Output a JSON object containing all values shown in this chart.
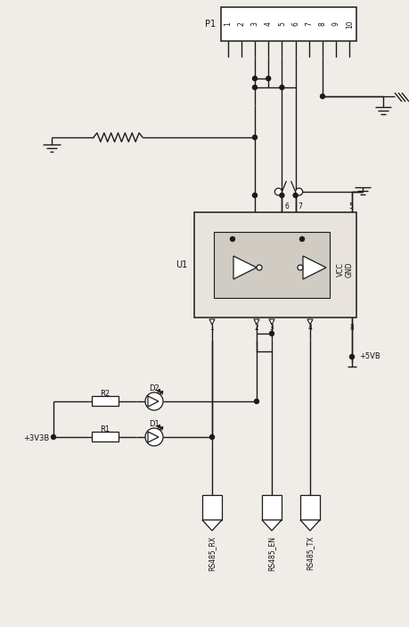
{
  "bg_color": "#f0ede8",
  "line_color": "#1a1a1a",
  "figsize": [
    4.59,
    7.03
  ],
  "dpi": 100,
  "p1_pins": [
    "1",
    "2",
    "3",
    "4",
    "5",
    "6",
    "7",
    "8",
    "9",
    "10"
  ],
  "labels": {
    "p1": "P1",
    "u1": "U1",
    "vcc": "VCC",
    "gnd": "GND",
    "r1": "R1",
    "r2": "R2",
    "d1": "D1",
    "d2": "D2",
    "v3v3b": "+3V3B",
    "v5vb": "+5VB",
    "rs485_rx": "RS485_RX",
    "rs485_en": "RS485_EN",
    "rs485_tx": "RS485_TX"
  }
}
